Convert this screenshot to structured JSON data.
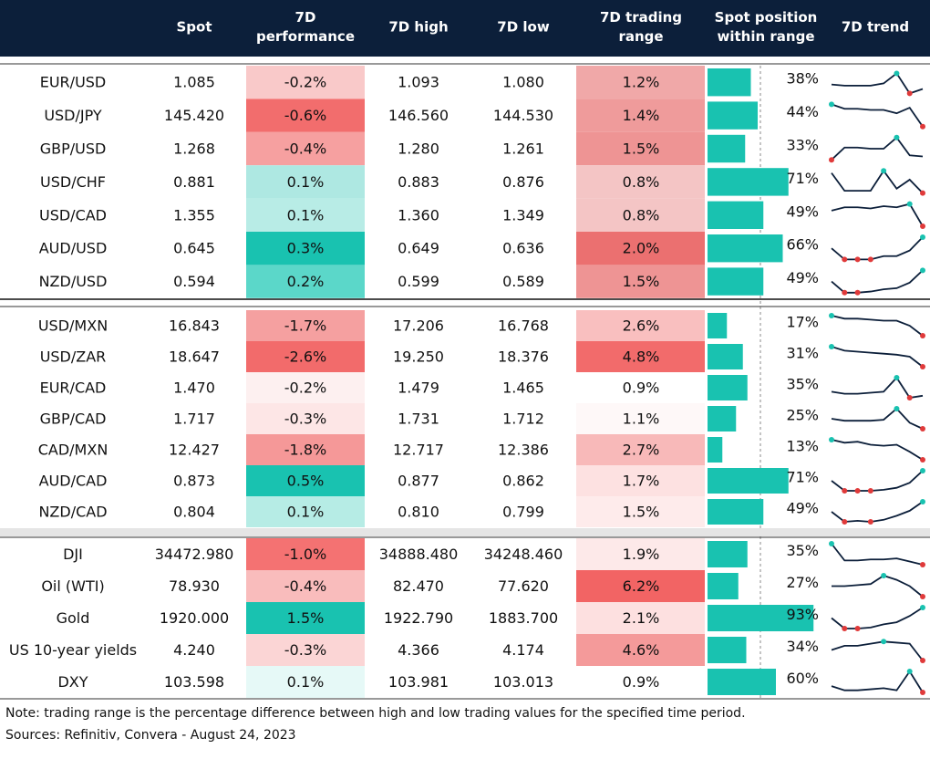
{
  "header": {
    "columns": [
      [
        "Spot"
      ],
      [
        "7D",
        "performance"
      ],
      [
        "7D high"
      ],
      [
        "7D low"
      ],
      [
        "7D trading",
        "range"
      ],
      [
        "Spot position",
        "within range"
      ],
      [
        "7D trend"
      ]
    ]
  },
  "groups": [
    {
      "rows": [
        {
          "pair": "EUR/USD",
          "spot": "1.085",
          "perf": "-0.2%",
          "perf_color": "#f9c9c9",
          "high": "1.093",
          "low": "1.080",
          "range": "1.2%",
          "range_color": "#f0a8a8",
          "position": {
            "value": 38,
            "label": "38%"
          },
          "trend": [
            0.4,
            0.35,
            0.35,
            0.35,
            0.45,
            0.9,
            0.0,
            0.2
          ]
        },
        {
          "pair": "USD/JPY",
          "spot": "145.420",
          "perf": "-0.6%",
          "perf_color": "#f26d6d",
          "high": "146.560",
          "low": "144.530",
          "range": "1.4%",
          "range_color": "#ef9b9b",
          "position": {
            "value": 44,
            "label": "44%"
          },
          "trend": [
            1,
            0.8,
            0.8,
            0.75,
            0.75,
            0.6,
            0.85,
            0
          ]
        },
        {
          "pair": "GBP/USD",
          "spot": "1.268",
          "perf": "-0.4%",
          "perf_color": "#f6a0a0",
          "high": "1.280",
          "low": "1.261",
          "range": "1.5%",
          "range_color": "#ee9494",
          "position": {
            "value": 33,
            "label": "33%"
          },
          "trend": [
            0,
            0.55,
            0.55,
            0.5,
            0.5,
            1,
            0.2,
            0.15
          ]
        },
        {
          "pair": "USD/CHF",
          "spot": "0.881",
          "perf": "0.1%",
          "perf_color": "#aee8e2",
          "high": "0.883",
          "low": "0.876",
          "range": "0.8%",
          "range_color": "#f4c5c5",
          "position": {
            "value": 71,
            "label": "71%"
          },
          "trend": [
            0.9,
            0.1,
            0.1,
            0.1,
            1,
            0.2,
            0.6,
            0
          ]
        },
        {
          "pair": "USD/CAD",
          "spot": "1.355",
          "perf": "0.1%",
          "perf_color": "#b8ece6",
          "high": "1.360",
          "low": "1.349",
          "range": "0.8%",
          "range_color": "#f4c5c5",
          "position": {
            "value": 49,
            "label": "49%"
          },
          "trend": [
            0.7,
            0.85,
            0.85,
            0.8,
            0.9,
            0.85,
            1,
            0
          ]
        },
        {
          "pair": "AUD/USD",
          "spot": "0.645",
          "perf": "0.3%",
          "perf_color": "#19c2b0",
          "high": "0.649",
          "low": "0.636",
          "range": "2.0%",
          "range_color": "#eb7070",
          "position": {
            "value": 66,
            "label": "66%"
          },
          "trend": [
            0.5,
            0,
            0,
            0,
            0.15,
            0.15,
            0.4,
            1
          ]
        },
        {
          "pair": "NZD/USD",
          "spot": "0.594",
          "perf": "0.2%",
          "perf_color": "#5bd7c9",
          "high": "0.599",
          "low": "0.589",
          "range": "1.5%",
          "range_color": "#ee9494",
          "position": {
            "value": 49,
            "label": "49%"
          },
          "trend": [
            0.5,
            0,
            0,
            0.05,
            0.15,
            0.2,
            0.45,
            1
          ]
        }
      ]
    },
    {
      "rows": [
        {
          "pair": "USD/MXN",
          "spot": "16.843",
          "perf": "-1.7%",
          "perf_color": "#f5a0a0",
          "high": "17.206",
          "low": "16.768",
          "range": "2.6%",
          "range_color": "#f9bfbf",
          "position": {
            "value": 17,
            "label": "17%"
          },
          "trend": [
            1,
            0.85,
            0.85,
            0.8,
            0.75,
            0.75,
            0.5,
            0
          ]
        },
        {
          "pair": "USD/ZAR",
          "spot": "18.647",
          "perf": "-2.6%",
          "perf_color": "#f26b6b",
          "high": "19.250",
          "low": "18.376",
          "range": "4.8%",
          "range_color": "#f26b6b",
          "position": {
            "value": 31,
            "label": "31%"
          },
          "trend": [
            1,
            0.8,
            0.75,
            0.7,
            0.65,
            0.6,
            0.5,
            0
          ]
        },
        {
          "pair": "EUR/CAD",
          "spot": "1.470",
          "perf": "-0.2%",
          "perf_color": "#fdf0f0",
          "high": "1.479",
          "low": "1.465",
          "range": "0.9%",
          "range_color": "#ffffff",
          "position": {
            "value": 35,
            "label": "35%"
          },
          "trend": [
            0.3,
            0.2,
            0.2,
            0.25,
            0.3,
            1,
            0,
            0.1
          ]
        },
        {
          "pair": "GBP/CAD",
          "spot": "1.717",
          "perf": "-0.3%",
          "perf_color": "#fde6e6",
          "high": "1.731",
          "low": "1.712",
          "range": "1.1%",
          "range_color": "#fef8f8",
          "position": {
            "value": 25,
            "label": "25%"
          },
          "trend": [
            0.5,
            0.4,
            0.4,
            0.4,
            0.45,
            1,
            0.3,
            0
          ]
        },
        {
          "pair": "CAD/MXN",
          "spot": "12.427",
          "perf": "-1.8%",
          "perf_color": "#f59898",
          "high": "12.717",
          "low": "12.386",
          "range": "2.7%",
          "range_color": "#f8b9b9",
          "position": {
            "value": 13,
            "label": "13%"
          },
          "trend": [
            1,
            0.85,
            0.9,
            0.75,
            0.7,
            0.75,
            0.4,
            0
          ]
        },
        {
          "pair": "AUD/CAD",
          "spot": "0.873",
          "perf": "0.5%",
          "perf_color": "#19c2b0",
          "high": "0.877",
          "low": "0.862",
          "range": "1.7%",
          "range_color": "#fde1e1",
          "position": {
            "value": 71,
            "label": "71%"
          },
          "trend": [
            0.5,
            0,
            0,
            0,
            0.05,
            0.15,
            0.4,
            1
          ]
        },
        {
          "pair": "NZD/CAD",
          "spot": "0.804",
          "perf": "0.1%",
          "perf_color": "#b6ece5",
          "high": "0.810",
          "low": "0.799",
          "range": "1.5%",
          "range_color": "#feebeb",
          "position": {
            "value": 49,
            "label": "49%"
          },
          "trend": [
            0.5,
            0,
            0.05,
            0,
            0.1,
            0.3,
            0.55,
            1
          ]
        }
      ]
    },
    {
      "rows": [
        {
          "pair": "DJI",
          "spot": "34472.980",
          "perf": "-1.0%",
          "perf_color": "#f47272",
          "high": "34888.480",
          "low": "34248.460",
          "range": "1.9%",
          "range_color": "#fde9e9",
          "position": {
            "value": 35,
            "label": "35%"
          },
          "trend": [
            1,
            0.2,
            0.2,
            0.25,
            0.25,
            0.3,
            0.15,
            0
          ]
        },
        {
          "pair": "Oil (WTI)",
          "spot": "78.930",
          "perf": "-0.4%",
          "perf_color": "#f9bcbc",
          "high": "82.470",
          "low": "77.620",
          "range": "6.2%",
          "range_color": "#f26464",
          "position": {
            "value": 27,
            "label": "27%"
          },
          "trend": [
            0.5,
            0.5,
            0.55,
            0.6,
            1,
            0.8,
            0.5,
            0
          ]
        },
        {
          "pair": "Gold",
          "spot": "1920.000",
          "perf": "1.5%",
          "perf_color": "#19c2b0",
          "high": "1922.790",
          "low": "1883.700",
          "range": "2.1%",
          "range_color": "#fde0e0",
          "position": {
            "value": 93,
            "label": "93%"
          },
          "trend": [
            0.5,
            0,
            0,
            0.05,
            0.2,
            0.3,
            0.6,
            1
          ]
        },
        {
          "pair": "US 10-year yields",
          "spot": "4.240",
          "perf": "-0.3%",
          "perf_color": "#fbd5d5",
          "high": "4.366",
          "low": "4.174",
          "range": "4.6%",
          "range_color": "#f49a9a",
          "position": {
            "value": 34,
            "label": "34%"
          },
          "trend": [
            0.5,
            0.7,
            0.7,
            0.8,
            0.9,
            0.85,
            0.8,
            0
          ]
        },
        {
          "pair": "DXY",
          "spot": "103.598",
          "perf": "0.1%",
          "perf_color": "#e6f9f7",
          "high": "103.981",
          "low": "103.013",
          "range": "0.9%",
          "range_color": "#ffffff",
          "position": {
            "value": 60,
            "label": "60%"
          },
          "trend": [
            0.3,
            0.1,
            0.1,
            0.15,
            0.2,
            0.1,
            1,
            0
          ]
        }
      ]
    }
  ],
  "notes": [
    "Note: trading range is the percentage difference between high and low trading values for the specified time period.",
    "Sources: Refinitiv, Convera - August 24, 2023"
  ]
}
